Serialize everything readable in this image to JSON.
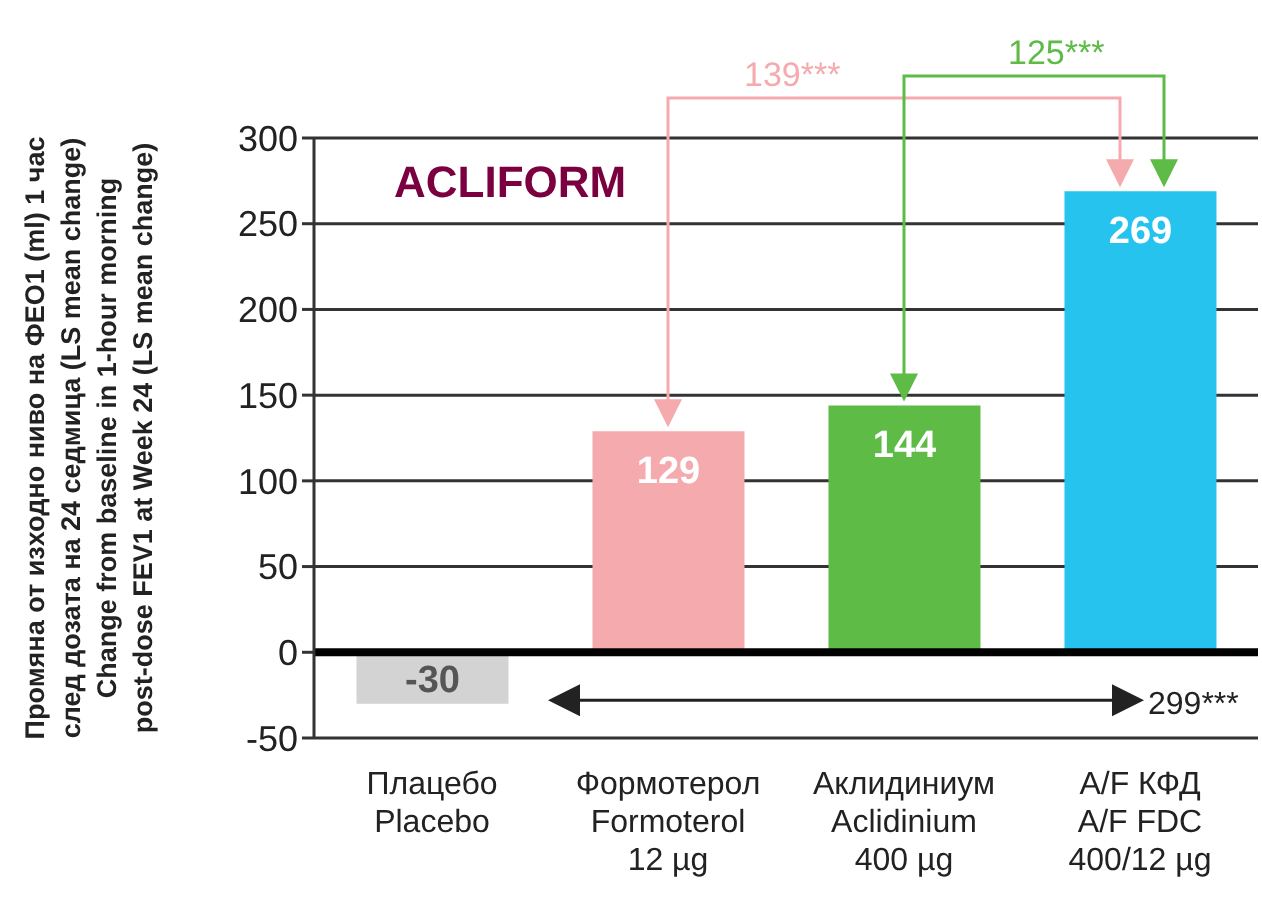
{
  "chart_data": {
    "type": "bar",
    "ylabel": "Промяна от изходно ниво на ФЕО1 (ml) 1 час\nслед дозата на 24 седмица (LS mean change)\nChange from baseline in 1-hour morning\npost-dose FEV1 at Week 24 (LS mean change)",
    "categories": [
      "Плацебо\nPlacebo",
      "Формотерол\nFormoterol\n12 µg",
      "Аклидиниум\nAclidinium\n400 µg",
      "A/F КФД\nA/F FDC\n400/12 µg"
    ],
    "values": [
      -30,
      129,
      144,
      269
    ],
    "colors": [
      "#d3d3d3",
      "#f5aaae",
      "#5dbb46",
      "#27c3ef"
    ],
    "data_labels": true,
    "ylim": [
      -50,
      300
    ],
    "yticks": [
      -50,
      0,
      50,
      100,
      150,
      200,
      250,
      300
    ],
    "grid": "y",
    "ref_lines": [
      {
        "axis": "y",
        "value": 0,
        "color": "#000000"
      }
    ],
    "annotations": [
      "ACLIFORM",
      "139***",
      "125***",
      "299***"
    ]
  }
}
